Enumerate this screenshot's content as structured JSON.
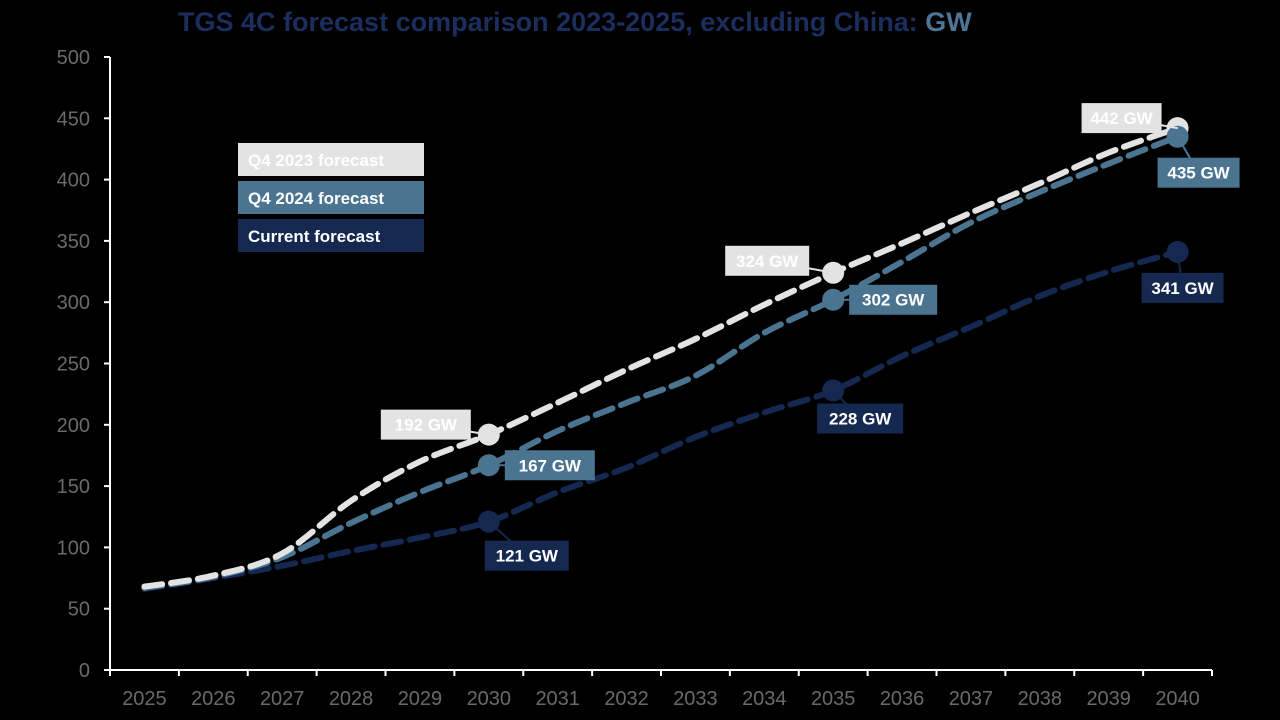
{
  "chart_data": {
    "type": "line",
    "title": "TGS 4C forecast comparison 2023-2025, excluding China: ",
    "title_unit": "GW",
    "x": [
      2025,
      2026,
      2027,
      2028,
      2029,
      2030,
      2031,
      2032,
      2033,
      2034,
      2035,
      2036,
      2037,
      2038,
      2039,
      2040
    ],
    "x_tick_labels": [
      "2025",
      "2026",
      "2027",
      "2028",
      "2029",
      "2030",
      "2031",
      "2032",
      "2033",
      "2034",
      "2035",
      "2036",
      "2037",
      "2038",
      "2039",
      "2040"
    ],
    "y_tick_labels": [
      "0",
      "50",
      "100",
      "150",
      "200",
      "250",
      "300",
      "350",
      "400",
      "450",
      "500"
    ],
    "ylim": [
      0,
      500
    ],
    "grid": false,
    "legend_position": "top-left",
    "series": [
      {
        "name": "Q4 2023 forecast",
        "color": "#e3e3e3",
        "label_text_color": "#ffffff",
        "values": [
          68,
          77,
          95,
          138,
          170,
          192,
          218,
          245,
          270,
          298,
          324,
          348,
          373,
          397,
          422,
          442
        ]
      },
      {
        "name": "Q4 2024 forecast",
        "color": "#4b7491",
        "label_text_color": "#ffffff",
        "values": [
          67,
          76,
          92,
          120,
          145,
          167,
          195,
          218,
          240,
          275,
          302,
          333,
          365,
          390,
          413,
          435
        ]
      },
      {
        "name": "Current forecast",
        "color": "#142850",
        "label_text_color": "#ffffff",
        "values": [
          66,
          75,
          85,
          97,
          108,
          121,
          145,
          165,
          190,
          210,
          228,
          256,
          280,
          305,
          325,
          341
        ]
      }
    ],
    "data_labels": [
      {
        "series": 0,
        "x": 2030,
        "text": "192 GW"
      },
      {
        "series": 1,
        "x": 2030,
        "text": "167 GW"
      },
      {
        "series": 2,
        "x": 2030,
        "text": "121 GW"
      },
      {
        "series": 0,
        "x": 2035,
        "text": "324 GW"
      },
      {
        "series": 1,
        "x": 2035,
        "text": "302 GW"
      },
      {
        "series": 2,
        "x": 2035,
        "text": "228 GW"
      },
      {
        "series": 0,
        "x": 2040,
        "text": "442 GW"
      },
      {
        "series": 1,
        "x": 2040,
        "text": "435 GW"
      },
      {
        "series": 2,
        "x": 2040,
        "text": "341 GW"
      }
    ]
  }
}
